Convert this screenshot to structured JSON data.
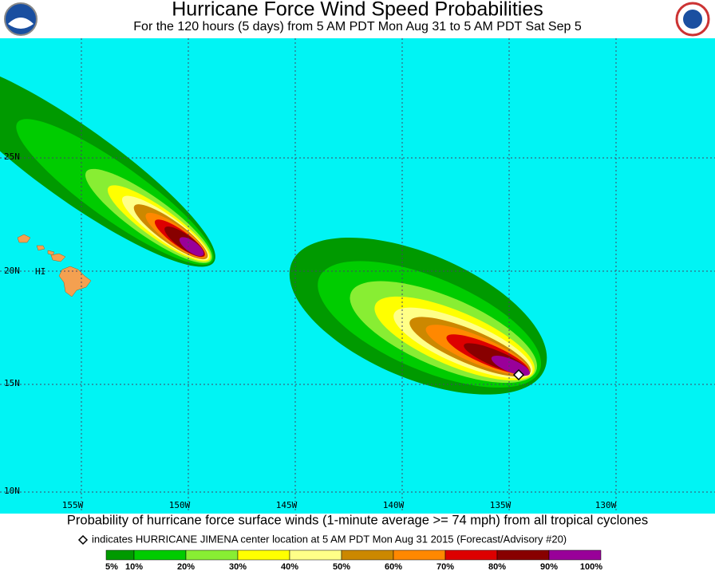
{
  "header": {
    "title": "Hurricane Force Wind Speed Probabilities",
    "subtitle": "For the 120 hours (5 days) from 5 AM PDT Mon Aug 31 to 5 AM PDT Sat Sep 5"
  },
  "map": {
    "latitude_labels": [
      "25N",
      "20N",
      "15N",
      "10N"
    ],
    "longitude_labels": [
      "155W",
      "150W",
      "145W",
      "140W",
      "135W",
      "130W"
    ],
    "place_label": "HI"
  },
  "caption": "Probability of hurricane force surface winds (1-minute average >= 74 mph) from all tropical cyclones",
  "marker_note": "indicates HURRICANE JIMENA center location at 5 AM PDT Mon Aug 31 2015 (Forecast/Advisory #20)",
  "legend": {
    "labels": [
      "5%",
      "10%",
      "20%",
      "30%",
      "40%",
      "50%",
      "60%",
      "70%",
      "80%",
      "90%",
      "100%"
    ],
    "colors": [
      "#009a00",
      "#00cc00",
      "#88ee33",
      "#ffff00",
      "#ffff88",
      "#cc8800",
      "#ff8800",
      "#dd0000",
      "#880000",
      "#990099"
    ]
  }
}
